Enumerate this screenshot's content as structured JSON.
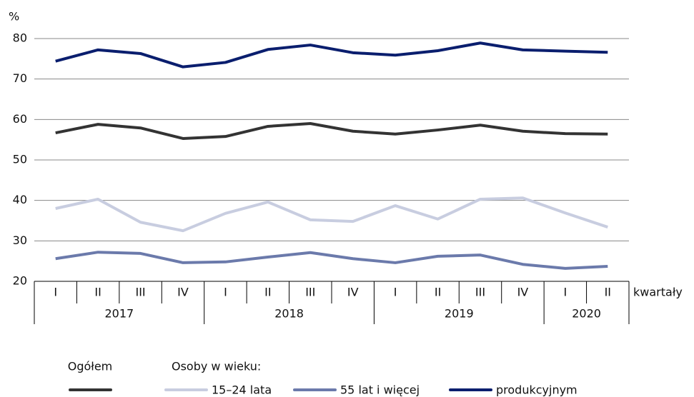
{
  "chart_data": {
    "type": "line",
    "y_label": "%",
    "x_label": "kwartały",
    "legend_title": "Osoby w wieku:",
    "categories": [
      "I",
      "II",
      "III",
      "IV",
      "I",
      "II",
      "III",
      "IV",
      "I",
      "II",
      "III",
      "IV",
      "I",
      "II"
    ],
    "year_labels": [
      "2017",
      "2018",
      "2019",
      "2020"
    ],
    "ylim": [
      20,
      80
    ],
    "yticks": [
      20,
      30,
      40,
      50,
      60,
      70,
      80
    ],
    "grid": true,
    "series": [
      {
        "name": "Ogółem",
        "color": "#333333",
        "values": [
          56.7,
          58.8,
          57.9,
          55.3,
          55.8,
          58.3,
          59.0,
          57.1,
          56.4,
          57.4,
          58.6,
          57.1,
          56.5,
          56.4
        ]
      },
      {
        "name": "15–24 lata",
        "color": "#c8cde0",
        "values": [
          38.0,
          40.3,
          34.6,
          32.5,
          36.8,
          39.6,
          35.2,
          34.8,
          38.7,
          35.4,
          40.3,
          40.6,
          36.9,
          33.4
        ]
      },
      {
        "name": "55 lat i więcej",
        "color": "#6b7aab",
        "values": [
          25.6,
          27.2,
          26.9,
          24.6,
          24.8,
          26.0,
          27.1,
          25.6,
          24.6,
          26.2,
          26.5,
          24.2,
          23.2,
          23.7
        ]
      },
      {
        "name": "produkcyjnym",
        "color": "#0a1e6e",
        "values": [
          74.4,
          77.2,
          76.3,
          73.0,
          74.1,
          77.3,
          78.4,
          76.5,
          75.9,
          77.0,
          78.9,
          77.2,
          76.9,
          76.6
        ]
      }
    ]
  }
}
